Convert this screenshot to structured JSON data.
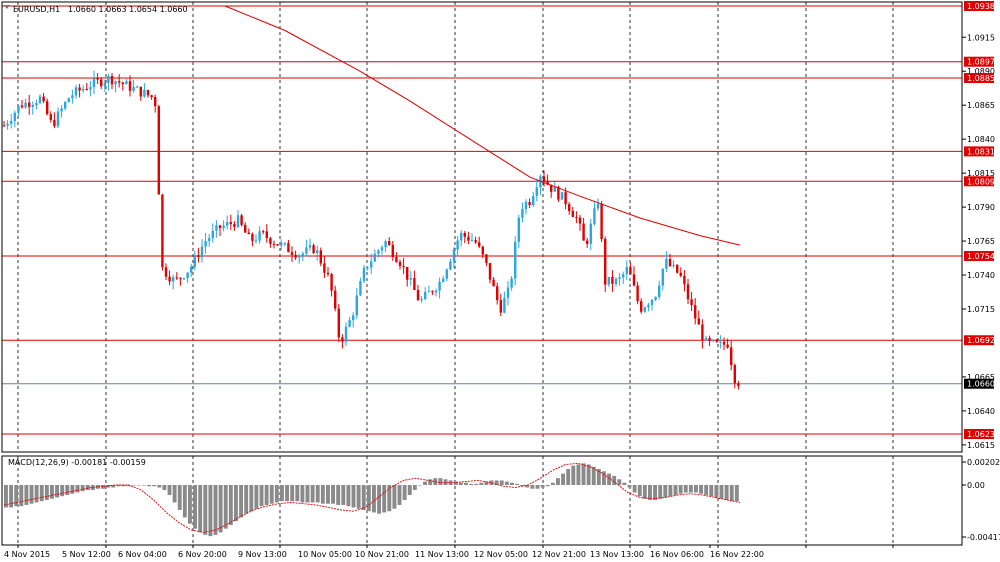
{
  "header": {
    "symbol": "EURUSD,H1",
    "ohlc": "1.0660 1.0663 1.0654 1.0660"
  },
  "chart_data": {
    "type": "candlestick",
    "price_ticks": [
      "1.0915",
      "1.0890",
      "1.0865",
      "1.0840",
      "1.0815",
      "1.0790",
      "1.0765",
      "1.0740",
      "1.0715",
      "1.0665",
      "1.0640",
      "1.0615"
    ],
    "horizontal_levels": [
      {
        "price": 1.0938,
        "label": "1.0938"
      },
      {
        "price": 1.0897,
        "label": "1.0897"
      },
      {
        "price": 1.0885,
        "label": "1.0885"
      },
      {
        "price": 1.0831,
        "label": "1.0831"
      },
      {
        "price": 1.0809,
        "label": "1.0809"
      },
      {
        "price": 1.0754,
        "label": "1.0754"
      },
      {
        "price": 1.0692,
        "label": "1.0692"
      },
      {
        "price": 1.0623,
        "label": "1.0623"
      }
    ],
    "current_price": {
      "price": 1.066,
      "label": "1.0660"
    },
    "x_labels": [
      "4 Nov 2015",
      "5 Nov 12:00",
      "6 Nov 04:00",
      "6 Nov 20:00",
      "9 Nov 13:00",
      "10 Nov 05:00",
      "10 Nov 21:00",
      "11 Nov 13:00",
      "12 Nov 05:00",
      "12 Nov 21:00",
      "13 Nov 13:00",
      "16 Nov 06:00",
      "16 Nov 22:00"
    ],
    "ma_line": [
      [
        1.0938,
        225
      ],
      [
        1.092,
        285
      ],
      [
        1.089,
        360
      ],
      [
        1.0868,
        410
      ],
      [
        1.084,
        470
      ],
      [
        1.0812,
        530
      ],
      [
        1.0798,
        580
      ],
      [
        1.0782,
        640
      ],
      [
        1.0769,
        700
      ],
      [
        1.0762,
        740
      ]
    ],
    "close_path": [
      [
        1.085,
        4
      ],
      [
        1.0865,
        20
      ],
      [
        1.087,
        40
      ],
      [
        1.085,
        52
      ],
      [
        1.0872,
        70
      ],
      [
        1.088,
        90
      ],
      [
        1.0885,
        110
      ],
      [
        1.088,
        125
      ],
      [
        1.0875,
        140
      ],
      [
        1.087,
        155
      ],
      [
        1.0745,
        162
      ],
      [
        1.0735,
        175
      ],
      [
        1.0745,
        190
      ],
      [
        1.0765,
        205
      ],
      [
        1.0775,
        220
      ],
      [
        1.078,
        238
      ],
      [
        1.0765,
        250
      ],
      [
        1.077,
        262
      ],
      [
        1.0762,
        280
      ],
      [
        1.0755,
        300
      ],
      [
        1.076,
        315
      ],
      [
        1.0735,
        330
      ],
      [
        1.069,
        340
      ],
      [
        1.071,
        352
      ],
      [
        1.0745,
        365
      ],
      [
        1.0765,
        385
      ],
      [
        1.075,
        400
      ],
      [
        1.072,
        420
      ],
      [
        1.0735,
        440
      ],
      [
        1.077,
        460
      ],
      [
        1.0765,
        475
      ],
      [
        1.075,
        485
      ],
      [
        1.0715,
        500
      ],
      [
        1.073,
        510
      ],
      [
        1.079,
        520
      ],
      [
        1.0795,
        530
      ],
      [
        1.0815,
        540
      ],
      [
        1.0805,
        550
      ],
      [
        1.0795,
        565
      ],
      [
        1.078,
        578
      ],
      [
        1.076,
        585
      ],
      [
        1.0795,
        598
      ],
      [
        1.0735,
        605
      ],
      [
        1.0735,
        618
      ],
      [
        1.0745,
        628
      ],
      [
        1.0715,
        640
      ],
      [
        1.0725,
        655
      ],
      [
        1.075,
        665
      ],
      [
        1.074,
        680
      ],
      [
        1.0715,
        692
      ],
      [
        1.069,
        705
      ],
      [
        1.0688,
        720
      ],
      [
        1.069,
        728
      ],
      [
        1.0665,
        734
      ],
      [
        1.066,
        740
      ]
    ],
    "macd": {
      "label": "MACD(12,26,9) -0.00181 -0.00159",
      "ticks": [
        "0.00202",
        "0.00",
        "-0.00417"
      ],
      "hist": [
        -0.0018,
        -0.0018,
        -0.0017,
        -0.0017,
        -0.0016,
        -0.0015,
        -0.0014,
        -0.0013,
        -0.0012,
        -0.0011,
        -0.001,
        -0.0009,
        -0.0008,
        -0.0007,
        -0.0006,
        -0.0005,
        -0.0004,
        -0.0004,
        -0.0003,
        -0.0003,
        -0.0002,
        -0.0002,
        -0.0001,
        -0.0001,
        -0.0001,
        0.0,
        0.0,
        0.0,
        -0.0001,
        -0.0001,
        -0.0002,
        -0.0004,
        -0.0008,
        -0.0014,
        -0.002,
        -0.0026,
        -0.0031,
        -0.0035,
        -0.0038,
        -0.004,
        -0.0041,
        -0.004,
        -0.0038,
        -0.0035,
        -0.0032,
        -0.0029,
        -0.0026,
        -0.0023,
        -0.0021,
        -0.0019,
        -0.0017,
        -0.0016,
        -0.0015,
        -0.0014,
        -0.0013,
        -0.0013,
        -0.0013,
        -0.0013,
        -0.0014,
        -0.0014,
        -0.0014,
        -0.0014,
        -0.0015,
        -0.0015,
        -0.0015,
        -0.0016,
        -0.0016,
        -0.0017,
        -0.0018,
        -0.0019,
        -0.002,
        -0.0021,
        -0.0022,
        -0.0023,
        -0.0022,
        -0.0021,
        -0.0019,
        -0.0016,
        -0.0012,
        -0.0008,
        -0.0004,
        0.0,
        0.0003,
        0.0005,
        0.0006,
        0.0006,
        0.0005,
        0.0004,
        0.0003,
        0.0002,
        0.0002,
        0.0001,
        0.0001,
        0.0002,
        0.0003,
        0.0004,
        0.0004,
        0.0004,
        0.0003,
        0.0002,
        0.0001,
        -0.0001,
        -0.0002,
        -0.0003,
        -0.0003,
        -0.0002,
        -0.0001,
        0.0002,
        0.0006,
        0.001,
        0.0014,
        0.0017,
        0.0018,
        0.0019,
        0.0018,
        0.0016,
        0.0014,
        0.0012,
        0.001,
        0.0008,
        0.0005,
        0.0002,
        -0.0002,
        -0.0006,
        -0.0009,
        -0.0011,
        -0.0012,
        -0.0012,
        -0.0011,
        -0.001,
        -0.0009,
        -0.0008,
        -0.0007,
        -0.0006,
        -0.0006,
        -0.0006,
        -0.0007,
        -0.0008,
        -0.0009,
        -0.001,
        -0.0011,
        -0.0012,
        -0.0013,
        -0.0013
      ],
      "signal": [
        -0.0016,
        -0.0014,
        -0.0012,
        -0.001,
        -0.0008,
        -0.0006,
        -0.0004,
        -0.0002,
        -0.0001,
        0.0,
        0.0,
        -0.0004,
        -0.0012,
        -0.0022,
        -0.003,
        -0.0036,
        -0.0038,
        -0.0036,
        -0.0031,
        -0.0025,
        -0.002,
        -0.0017,
        -0.0015,
        -0.0014,
        -0.0015,
        -0.0016,
        -0.0018,
        -0.002,
        -0.0021,
        -0.0018,
        -0.001,
        -0.0002,
        0.0004,
        0.0006,
        0.0004,
        0.0002,
        0.0002,
        0.0003,
        0.0004,
        0.0002,
        -0.0001,
        -0.0002,
        0.0,
        0.0006,
        0.0013,
        0.0018,
        0.0019,
        0.0016,
        0.001,
        0.0002,
        -0.0006,
        -0.001,
        -0.0011,
        -0.001,
        -0.0008,
        -0.0007,
        -0.0008,
        -0.001,
        -0.0012,
        -0.0014
      ]
    }
  }
}
